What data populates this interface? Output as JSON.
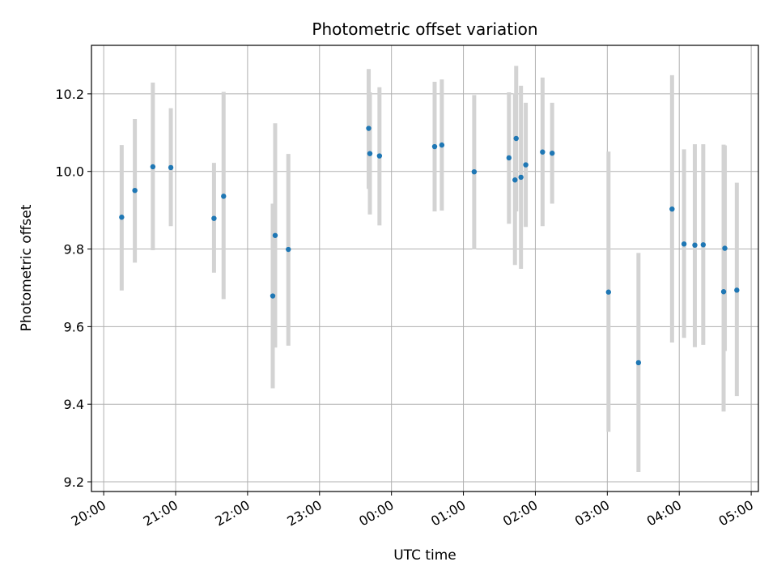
{
  "chart_data": {
    "type": "scatter",
    "title": "Photometric offset variation",
    "xlabel": "UTC time",
    "ylabel": "Photometric offset",
    "ylim": [
      9.175,
      10.325
    ],
    "xlim_hours": [
      19.83,
      29.1
    ],
    "x_ticks": [
      "20:00",
      "21:00",
      "22:00",
      "23:00",
      "00:00",
      "01:00",
      "02:00",
      "03:00",
      "04:00",
      "05:00"
    ],
    "y_ticks": [
      "9.2",
      "9.4",
      "9.6",
      "9.8",
      "10.0",
      "10.2"
    ],
    "grid": true,
    "colors": {
      "point": "#1f77b4",
      "errorbar": "#d3d3d3",
      "grid": "#b0b0b0",
      "axes": "#000000"
    },
    "points": [
      {
        "t": "20:15",
        "y": 9.882,
        "err_low": 9.693,
        "err_high": 10.068
      },
      {
        "t": "20:26",
        "y": 9.951,
        "err_low": 9.765,
        "err_high": 10.135
      },
      {
        "t": "20:41",
        "y": 10.012,
        "err_low": 9.797,
        "err_high": 10.229
      },
      {
        "t": "20:56",
        "y": 10.01,
        "err_low": 9.859,
        "err_high": 10.163
      },
      {
        "t": "21:32",
        "y": 9.879,
        "err_low": 9.739,
        "err_high": 10.022
      },
      {
        "t": "21:40",
        "y": 9.936,
        "err_low": 9.671,
        "err_high": 10.205
      },
      {
        "t": "22:21",
        "y": 9.679,
        "err_low": 9.441,
        "err_high": 9.917
      },
      {
        "t": "22:23",
        "y": 9.835,
        "err_low": 9.546,
        "err_high": 10.124
      },
      {
        "t": "22:34",
        "y": 9.799,
        "err_low": 9.551,
        "err_high": 10.045
      },
      {
        "t": "23:41",
        "y": 10.111,
        "err_low": 9.955,
        "err_high": 10.264
      },
      {
        "t": "23:42",
        "y": 10.046,
        "err_low": 9.889,
        "err_high": 10.204
      },
      {
        "t": "23:50",
        "y": 10.04,
        "err_low": 9.861,
        "err_high": 10.217
      },
      {
        "t": "00:36",
        "y": 10.064,
        "err_low": 9.897,
        "err_high": 10.231
      },
      {
        "t": "00:42",
        "y": 10.068,
        "err_low": 9.899,
        "err_high": 10.237
      },
      {
        "t": "01:09",
        "y": 9.999,
        "err_low": 9.799,
        "err_high": 10.197
      },
      {
        "t": "01:38",
        "y": 10.035,
        "err_low": 9.865,
        "err_high": 10.204
      },
      {
        "t": "01:43",
        "y": 9.978,
        "err_low": 9.759,
        "err_high": 10.201
      },
      {
        "t": "01:44",
        "y": 10.085,
        "err_low": 9.897,
        "err_high": 10.272
      },
      {
        "t": "01:48",
        "y": 9.985,
        "err_low": 9.749,
        "err_high": 10.221
      },
      {
        "t": "01:52",
        "y": 10.017,
        "err_low": 9.857,
        "err_high": 10.177
      },
      {
        "t": "02:06",
        "y": 10.05,
        "err_low": 9.859,
        "err_high": 10.242
      },
      {
        "t": "02:14",
        "y": 10.047,
        "err_low": 9.917,
        "err_high": 10.177
      },
      {
        "t": "03:01",
        "y": 9.689,
        "err_low": 9.329,
        "err_high": 10.051
      },
      {
        "t": "03:26",
        "y": 9.507,
        "err_low": 9.225,
        "err_high": 9.79
      },
      {
        "t": "03:54",
        "y": 9.903,
        "err_low": 9.559,
        "err_high": 10.248
      },
      {
        "t": "04:04",
        "y": 9.813,
        "err_low": 9.571,
        "err_high": 10.057
      },
      {
        "t": "04:13",
        "y": 9.81,
        "err_low": 9.547,
        "err_high": 10.07
      },
      {
        "t": "04:20",
        "y": 9.811,
        "err_low": 9.553,
        "err_high": 10.07
      },
      {
        "t": "04:37",
        "y": 9.69,
        "err_low": 9.381,
        "err_high": 10.069
      },
      {
        "t": "04:38",
        "y": 9.802,
        "err_low": 9.537,
        "err_high": 10.067
      },
      {
        "t": "04:48",
        "y": 9.694,
        "err_low": 9.421,
        "err_high": 9.971
      }
    ]
  }
}
